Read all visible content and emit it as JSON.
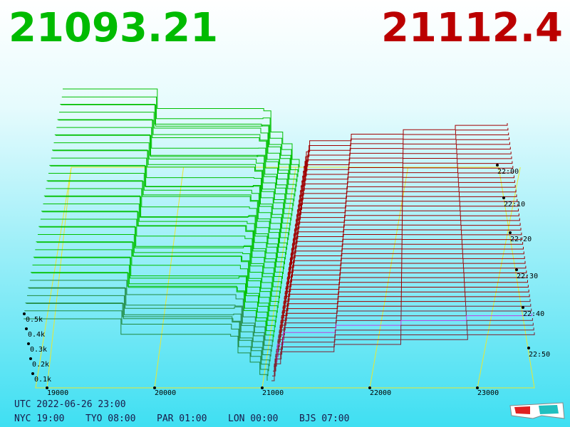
{
  "header": {
    "bid": "21093.21",
    "ask": "21112.4"
  },
  "axis": {
    "price_ticks": [
      "19000",
      "20000",
      "21000",
      "22000",
      "23000"
    ],
    "volume_ticks": [
      "0.5k",
      "0.4k",
      "0.3k",
      "0.2k",
      "0.1k"
    ],
    "time_ticks": [
      "22:00",
      "22:10",
      "22:20",
      "22:30",
      "22:40",
      "22:50"
    ]
  },
  "footer": {
    "utc": "UTC 2022-06-26 23:00",
    "clocks": [
      "NYC 19:00",
      "TYO 08:00",
      "PAR 01:00",
      "LON 00:00",
      "BJS 07:00"
    ]
  }
}
